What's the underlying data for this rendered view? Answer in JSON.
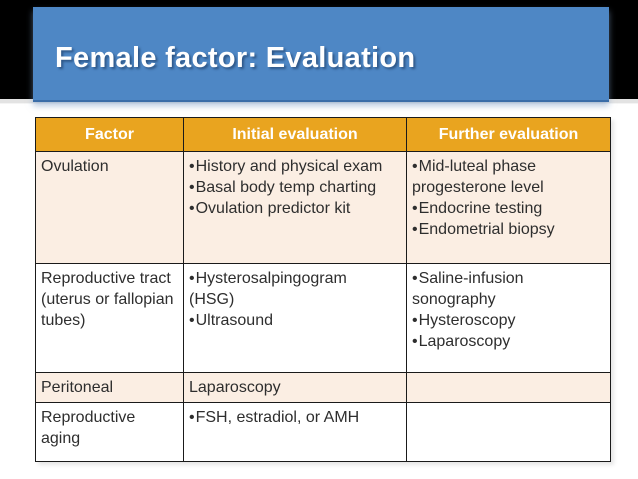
{
  "slide_title": "Female factor: Evaluation",
  "colors": {
    "top-band-black": "#000000",
    "banner-blue": "#4E87C5",
    "title-white": "#FFFFFF",
    "header-orange": "#E9A41F",
    "row-cream": "#FBEEE3",
    "border-dark": "#1A1A1A",
    "text-dark": "#2E2E2E"
  },
  "table": {
    "headers": [
      "Factor",
      "Initial evaluation",
      "Further evaluation"
    ],
    "rows": [
      {
        "cells": [
          {
            "items": [
              {
                "text": "Ovulation",
                "bullet": false
              }
            ]
          },
          {
            "items": [
              {
                "text": "History and physical exam",
                "bullet": true
              },
              {
                "text": "Basal body temp charting",
                "bullet": true
              },
              {
                "text": "Ovulation predictor kit",
                "bullet": true
              }
            ]
          },
          {
            "items": [
              {
                "text": "Mid-luteal phase\nprogesterone level",
                "bullet": true
              },
              {
                "text": "Endocrine testing",
                "bullet": true
              },
              {
                "text": "Endometrial biopsy",
                "bullet": true
              }
            ]
          }
        ]
      },
      {
        "cells": [
          {
            "items": [
              {
                "text": "Reproductive tract\n(uterus or fallopian\ntubes)",
                "bullet": false
              }
            ]
          },
          {
            "items": [
              {
                "text": "Hysterosalpingogram\n(HSG)",
                "bullet": true
              },
              {
                "text": "Ultrasound",
                "bullet": true
              }
            ]
          },
          {
            "items": [
              {
                "text": "Saline-infusion\nsonography",
                "bullet": true
              },
              {
                "text": "Hysteroscopy",
                "bullet": true
              },
              {
                "text": "Laparoscopy",
                "bullet": true
              }
            ]
          }
        ]
      },
      {
        "cells": [
          {
            "items": [
              {
                "text": "Peritoneal",
                "bullet": false
              }
            ]
          },
          {
            "items": [
              {
                "text": "Laparoscopy",
                "bullet": false
              }
            ]
          },
          {
            "items": []
          }
        ]
      },
      {
        "cells": [
          {
            "items": [
              {
                "text": "Reproductive\naging",
                "bullet": false
              }
            ]
          },
          {
            "items": [
              {
                "text": "FSH, estradiol, or AMH",
                "bullet": true
              }
            ]
          },
          {
            "items": []
          }
        ]
      }
    ]
  }
}
